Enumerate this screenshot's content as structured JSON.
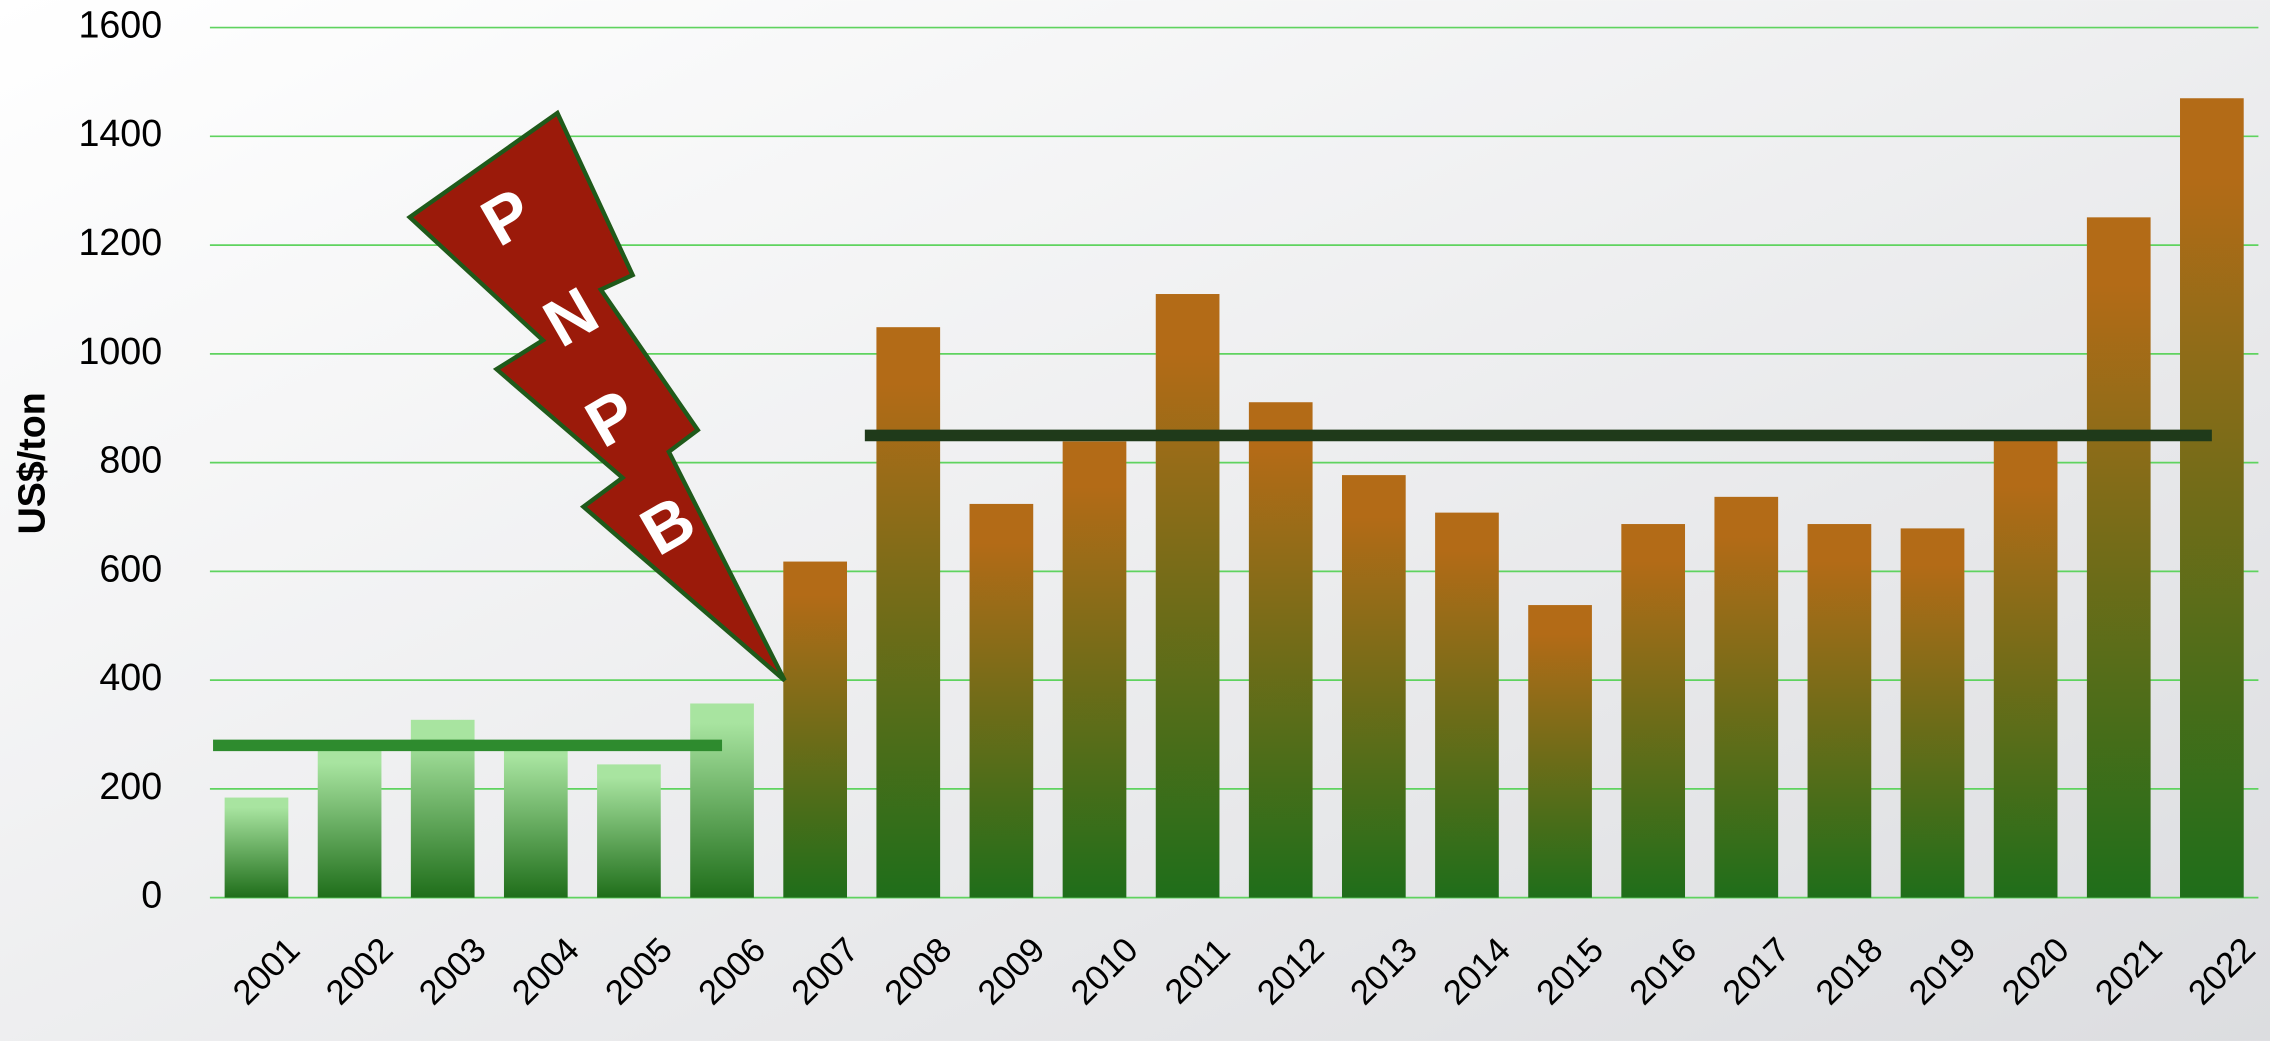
{
  "chart_data": {
    "type": "bar",
    "y_label": "US$/ton",
    "categories": [
      "2001",
      "2002",
      "2003",
      "2004",
      "2005",
      "2006",
      "2007",
      "2008",
      "2009",
      "2010",
      "2011",
      "2012",
      "2013",
      "2014",
      "2015",
      "2016",
      "2017",
      "2018",
      "2019",
      "2020",
      "2021",
      "2022"
    ],
    "values": [
      184,
      275,
      327,
      288,
      245,
      357,
      618,
      1049,
      724,
      839,
      1110,
      911,
      777,
      708,
      538,
      687,
      737,
      687,
      679,
      840,
      1251,
      1470
    ],
    "bar_colors": [
      "#a8e4a0",
      "#a8e4a0",
      "#a8e4a0",
      "#a8e4a0",
      "#a8e4a0",
      "#a8e4a0",
      "#b36b17",
      "#b36b17",
      "#b36b17",
      "#b36b17",
      "#b36b17",
      "#b36b17",
      "#b36b17",
      "#b36b17",
      "#b36b17",
      "#b36b17",
      "#b36b17",
      "#b36b17",
      "#b36b17",
      "#b36b17",
      "#b36b17",
      "#b36b17"
    ],
    "reference_lines": [
      {
        "value": 280,
        "from": "2001",
        "to": "2006",
        "color": "#2e8b2e"
      },
      {
        "value": 850,
        "from": "2008",
        "to": "2022",
        "color": "#1f3a1a"
      }
    ],
    "annotation": [
      "P",
      "N",
      "P",
      "B"
    ],
    "ylim": [
      0,
      1600
    ],
    "yticks": [
      0,
      200,
      400,
      600,
      800,
      1000,
      1200,
      1400,
      1600
    ],
    "grid": true,
    "grid_color": "#5fd35f"
  }
}
